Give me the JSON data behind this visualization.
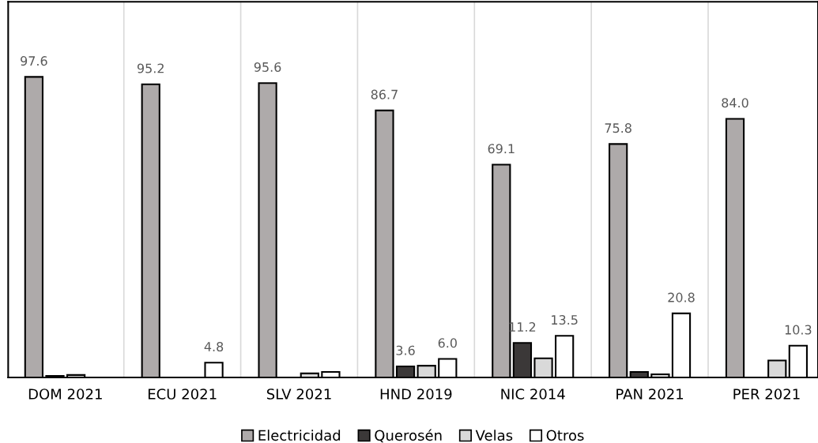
{
  "chart_data": {
    "type": "bar",
    "categories": [
      "DOM 2021",
      "ECU 2021",
      "SLV 2021",
      "HND 2019",
      "NIC 2014",
      "PAN 2021",
      "PER 2021"
    ],
    "series": [
      {
        "name": "Electricidad",
        "color": "#aeaaaa",
        "values": [
          97.6,
          95.2,
          95.6,
          86.7,
          69.1,
          75.8,
          84.0
        ],
        "value_labels": [
          "97.6",
          "95.2",
          "95.6",
          "86.7",
          "69.1",
          "75.8",
          "84.0"
        ]
      },
      {
        "name": "Querosén",
        "color": "#3b3838",
        "values": [
          0.5,
          null,
          null,
          3.6,
          11.2,
          1.8,
          null
        ],
        "value_labels": [
          null,
          null,
          null,
          "3.6",
          "11.2",
          null,
          null
        ]
      },
      {
        "name": "Velas",
        "color": "#d9d9d9",
        "values": [
          0.8,
          null,
          1.3,
          3.8,
          6.2,
          1.0,
          5.5
        ],
        "value_labels": [
          null,
          null,
          null,
          null,
          null,
          null,
          null
        ]
      },
      {
        "name": "Otros",
        "color": "#ffffff",
        "values": [
          null,
          4.8,
          1.8,
          6.0,
          13.5,
          20.8,
          10.3
        ],
        "value_labels": [
          null,
          "4.8",
          null,
          "6.0",
          "13.5",
          "20.8",
          "10.3"
        ]
      }
    ],
    "ylim": [
      0,
      122
    ],
    "tick_labels": "x",
    "grid": "x",
    "legend": "bottom"
  }
}
